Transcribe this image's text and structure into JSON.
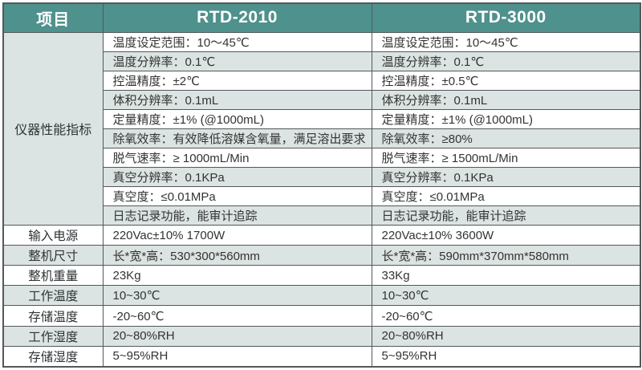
{
  "table": {
    "header": {
      "item": "项目",
      "rtd2010": "RTD-2010",
      "rtd3000": "RTD-3000"
    },
    "merged_label": "仪器性能指标",
    "performance_rows": [
      {
        "rtd2010": "温度设定范围：10～45℃",
        "rtd3000": "温度设定范围：10～45℃"
      },
      {
        "rtd2010": "温度分辨率：0.1℃",
        "rtd3000": "温度分辨率：0.1℃"
      },
      {
        "rtd2010": "控温精度：±2℃",
        "rtd3000": "控温精度：±0.5℃"
      },
      {
        "rtd2010": "体积分辨率：0.1mL",
        "rtd3000": "体积分辨率：0.1mL"
      },
      {
        "rtd2010": "定量精度：±1% (@1000mL)",
        "rtd3000": "定量精度：±1% (@1000mL)"
      },
      {
        "rtd2010": "除氧效率：有效降低溶媒含氧量，满足溶出要求",
        "rtd3000": "除氧效率：≥80%"
      },
      {
        "rtd2010": "脱气速率：≥ 1000mL/Min",
        "rtd3000": "脱气速率：≥ 1500mL/Min"
      },
      {
        "rtd2010": "真空分辨率：0.1KPa",
        "rtd3000": "真空分辨率：0.1KPa"
      },
      {
        "rtd2010": "真空度：≤0.01MPa",
        "rtd3000": "真空度：≤0.01MPa"
      },
      {
        "rtd2010": "日志记录功能，能审计追踪",
        "rtd3000": "日志记录功能，能审计追踪"
      }
    ],
    "spec_rows": [
      {
        "label": "输入电源",
        "rtd2010": "220Vac±10% 1700W",
        "rtd3000": "220Vac±10% 3600W"
      },
      {
        "label": "整机尺寸",
        "rtd2010": "长*宽*高：530*300*560mm",
        "rtd3000": "长*宽*高：590mm*370mm*580mm"
      },
      {
        "label": "整机重量",
        "rtd2010": "23Kg",
        "rtd3000": "33Kg"
      },
      {
        "label": "工作温度",
        "rtd2010": "10~30℃",
        "rtd3000": "10~30℃"
      },
      {
        "label": "存储温度",
        "rtd2010": "-20~60℃",
        "rtd3000": "-20~60℃"
      },
      {
        "label": "工作湿度",
        "rtd2010": "20~80%RH",
        "rtd3000": "20~80%RH"
      },
      {
        "label": "存储湿度",
        "rtd2010": "5~95%RH",
        "rtd3000": "5~95%RH"
      }
    ],
    "colors": {
      "header_bg": "#4f918c",
      "header_text": "#ffffff",
      "stripe_bg": "#dbe4e2",
      "border": "#54585b",
      "text": "#333333"
    }
  }
}
